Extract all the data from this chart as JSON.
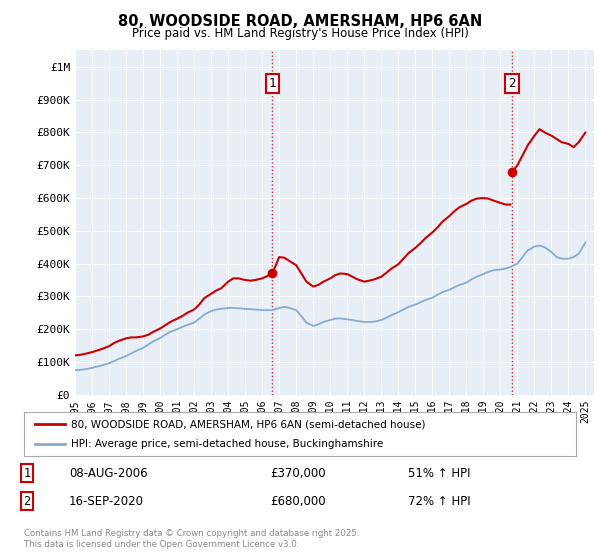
{
  "title": "80, WOODSIDE ROAD, AMERSHAM, HP6 6AN",
  "subtitle": "Price paid vs. HM Land Registry's House Price Index (HPI)",
  "background_color": "#ffffff",
  "plot_bg_color": "#e8eef5",
  "grid_color": "#ffffff",
  "ylim": [
    0,
    1050000
  ],
  "xlim_start": 1995.0,
  "xlim_end": 2025.5,
  "yticks": [
    0,
    100000,
    200000,
    300000,
    400000,
    500000,
    600000,
    700000,
    800000,
    900000,
    1000000
  ],
  "ytick_labels": [
    "£0",
    "£100K",
    "£200K",
    "£300K",
    "£400K",
    "£500K",
    "£600K",
    "£700K",
    "£800K",
    "£900K",
    "£1M"
  ],
  "xticks": [
    1995,
    1996,
    1997,
    1998,
    1999,
    2000,
    2001,
    2002,
    2003,
    2004,
    2005,
    2006,
    2007,
    2008,
    2009,
    2010,
    2011,
    2012,
    2013,
    2014,
    2015,
    2016,
    2017,
    2018,
    2019,
    2020,
    2021,
    2022,
    2023,
    2024,
    2025
  ],
  "property_color": "#cc0000",
  "hpi_color": "#88aacc",
  "vline_color": "#cc0000",
  "sale1_x": 2006.6,
  "sale1_y": 370000,
  "sale1_label": "1",
  "sale1_date": "08-AUG-2006",
  "sale1_price": "£370,000",
  "sale1_hpi": "51% ↑ HPI",
  "sale2_x": 2020.7,
  "sale2_y": 680000,
  "sale2_label": "2",
  "sale2_date": "16-SEP-2020",
  "sale2_price": "£680,000",
  "sale2_hpi": "72% ↑ HPI",
  "legend_line1": "80, WOODSIDE ROAD, AMERSHAM, HP6 6AN (semi-detached house)",
  "legend_line2": "HPI: Average price, semi-detached house, Buckinghamshire",
  "footnote": "Contains HM Land Registry data © Crown copyright and database right 2025.\nThis data is licensed under the Open Government Licence v3.0.",
  "hpi_data_x": [
    1995.0,
    1995.3,
    1995.6,
    1996.0,
    1996.3,
    1996.6,
    1997.0,
    1997.3,
    1997.6,
    1998.0,
    1998.3,
    1998.6,
    1999.0,
    1999.3,
    1999.6,
    2000.0,
    2000.3,
    2000.6,
    2001.0,
    2001.3,
    2001.6,
    2002.0,
    2002.3,
    2002.6,
    2003.0,
    2003.3,
    2003.6,
    2004.0,
    2004.3,
    2004.6,
    2005.0,
    2005.3,
    2005.6,
    2006.0,
    2006.3,
    2006.6,
    2007.0,
    2007.3,
    2007.6,
    2008.0,
    2008.3,
    2008.6,
    2009.0,
    2009.3,
    2009.6,
    2010.0,
    2010.3,
    2010.6,
    2011.0,
    2011.3,
    2011.6,
    2012.0,
    2012.3,
    2012.6,
    2013.0,
    2013.3,
    2013.6,
    2014.0,
    2014.3,
    2014.6,
    2015.0,
    2015.3,
    2015.6,
    2016.0,
    2016.3,
    2016.6,
    2017.0,
    2017.3,
    2017.6,
    2018.0,
    2018.3,
    2018.6,
    2019.0,
    2019.3,
    2019.6,
    2020.0,
    2020.3,
    2020.6,
    2021.0,
    2021.3,
    2021.6,
    2022.0,
    2022.3,
    2022.6,
    2023.0,
    2023.3,
    2023.6,
    2024.0,
    2024.3,
    2024.6,
    2025.0
  ],
  "hpi_data_y": [
    75000,
    76000,
    78000,
    82000,
    86000,
    90000,
    96000,
    103000,
    110000,
    118000,
    126000,
    134000,
    143000,
    153000,
    163000,
    173000,
    183000,
    192000,
    200000,
    207000,
    213000,
    220000,
    232000,
    245000,
    255000,
    260000,
    262000,
    265000,
    265000,
    264000,
    262000,
    261000,
    260000,
    258000,
    258000,
    258000,
    265000,
    268000,
    265000,
    258000,
    240000,
    220000,
    210000,
    215000,
    222000,
    228000,
    232000,
    233000,
    230000,
    228000,
    225000,
    222000,
    222000,
    223000,
    228000,
    235000,
    243000,
    252000,
    260000,
    268000,
    275000,
    282000,
    289000,
    296000,
    305000,
    313000,
    320000,
    328000,
    335000,
    342000,
    352000,
    360000,
    368000,
    375000,
    380000,
    382000,
    385000,
    390000,
    400000,
    420000,
    440000,
    452000,
    455000,
    450000,
    435000,
    420000,
    415000,
    415000,
    420000,
    430000,
    465000
  ],
  "prop_data_x": [
    1995.0,
    1995.3,
    1995.6,
    1996.0,
    1996.3,
    1996.6,
    1997.0,
    1997.3,
    1997.6,
    1998.0,
    1998.3,
    1998.6,
    1999.0,
    1999.3,
    1999.6,
    2000.0,
    2000.3,
    2000.6,
    2001.0,
    2001.3,
    2001.6,
    2002.0,
    2002.3,
    2002.6,
    2003.0,
    2003.3,
    2003.6,
    2004.0,
    2004.3,
    2004.6,
    2005.0,
    2005.3,
    2005.6,
    2006.0,
    2006.3,
    2006.6,
    2007.0,
    2007.3,
    2007.6,
    2008.0,
    2008.3,
    2008.6,
    2009.0,
    2009.3,
    2009.6,
    2010.0,
    2010.3,
    2010.6,
    2011.0,
    2011.3,
    2011.6,
    2012.0,
    2012.3,
    2012.6,
    2013.0,
    2013.3,
    2013.6,
    2014.0,
    2014.3,
    2014.6,
    2015.0,
    2015.3,
    2015.6,
    2016.0,
    2016.3,
    2016.6,
    2017.0,
    2017.3,
    2017.6,
    2018.0,
    2018.3,
    2018.6,
    2019.0,
    2019.3,
    2019.6,
    2020.0,
    2020.3,
    2020.6
  ],
  "prop_data_y": [
    120000,
    122000,
    125000,
    130000,
    135000,
    140000,
    148000,
    158000,
    165000,
    172000,
    175000,
    175000,
    178000,
    183000,
    192000,
    202000,
    212000,
    222000,
    232000,
    240000,
    250000,
    260000,
    275000,
    295000,
    308000,
    318000,
    325000,
    345000,
    355000,
    355000,
    350000,
    348000,
    350000,
    355000,
    362000,
    370000,
    420000,
    418000,
    408000,
    395000,
    370000,
    345000,
    330000,
    335000,
    345000,
    355000,
    365000,
    370000,
    368000,
    360000,
    352000,
    345000,
    348000,
    352000,
    360000,
    372000,
    385000,
    398000,
    415000,
    432000,
    448000,
    462000,
    478000,
    495000,
    510000,
    528000,
    545000,
    560000,
    572000,
    582000,
    592000,
    598000,
    600000,
    598000,
    592000,
    585000,
    580000,
    580000
  ],
  "prop_data_x2": [
    2020.7,
    2021.0,
    2021.3,
    2021.6,
    2022.0,
    2022.3,
    2022.6,
    2023.0,
    2023.3,
    2023.6,
    2024.0,
    2024.3,
    2024.6,
    2025.0
  ],
  "prop_data_y2": [
    680000,
    700000,
    730000,
    760000,
    790000,
    810000,
    800000,
    790000,
    780000,
    770000,
    765000,
    755000,
    770000,
    800000
  ]
}
